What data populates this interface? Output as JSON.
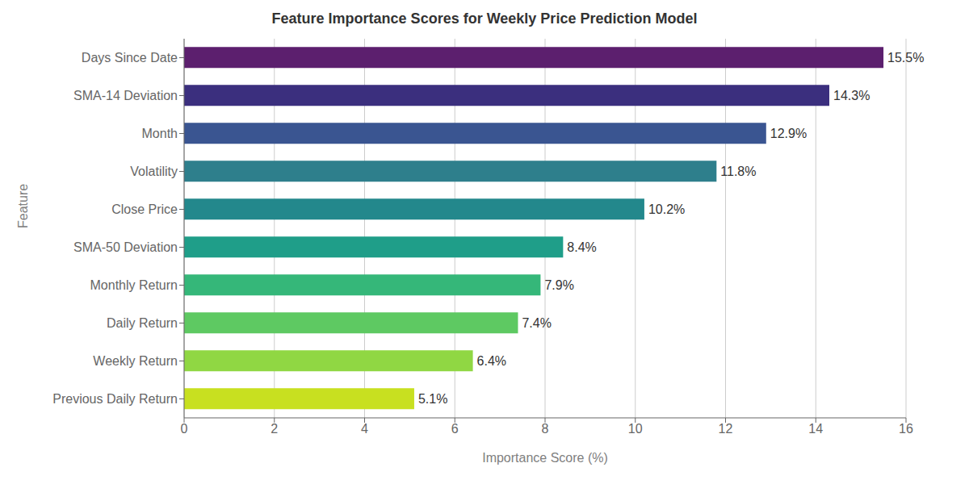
{
  "chart_data": {
    "type": "bar",
    "orientation": "horizontal",
    "title": "Feature Importance Scores for Weekly Price Prediction Model",
    "xlabel": "Importance Score (%)",
    "ylabel": "Feature",
    "categories": [
      "Days Since Date",
      "SMA-14 Deviation",
      "Month",
      "Volatility",
      "Close Price",
      "SMA-50 Deviation",
      "Monthly Return",
      "Daily Return",
      "Weekly Return",
      "Previous Daily Return"
    ],
    "values": [
      15.5,
      14.3,
      12.9,
      11.8,
      10.2,
      8.4,
      7.9,
      7.4,
      6.4,
      5.1
    ],
    "value_labels": [
      "15.5%",
      "14.3%",
      "12.9%",
      "11.8%",
      "10.2%",
      "8.4%",
      "7.9%",
      "7.4%",
      "6.4%",
      "5.1%"
    ],
    "data_labels": true,
    "colors": [
      "#5c1f6e",
      "#3b2f7e",
      "#3a5591",
      "#2e7f8c",
      "#23888c",
      "#1f9e89",
      "#35b779",
      "#5ec962",
      "#90d743",
      "#c8e020"
    ],
    "xlim": [
      0,
      16
    ],
    "xticks": [
      0,
      2,
      4,
      6,
      8,
      10,
      12,
      14,
      16
    ],
    "grid": true
  }
}
